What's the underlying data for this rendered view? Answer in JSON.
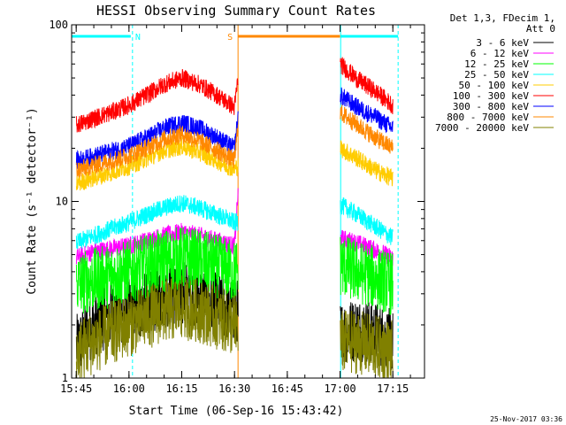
{
  "chart_data": {
    "type": "line",
    "title": "HESSI Observing Summary Count Rates",
    "xlabel": "Start Time (06-Sep-16 15:43:42)",
    "ylabel": "Count Rate (s⁻¹ detector⁻¹)",
    "x_start": "15:43:42",
    "xlim": [
      "15:43:42",
      "17:24:00"
    ],
    "x_ticks": [
      "15:45",
      "16:00",
      "16:15",
      "16:30",
      "16:45",
      "17:00",
      "17:15"
    ],
    "y_scale": "log",
    "ylim": [
      1,
      100
    ],
    "y_ticks": [
      1,
      10,
      100
    ],
    "legend_position": "outside top-right",
    "legend_header": [
      "Det 1,3, FDecim 1,",
      "Att 0"
    ],
    "timestamp": "25-Nov-2017 03:36",
    "time_grid": [
      "15:43",
      "15:45",
      "15:50",
      "15:55",
      "16:00",
      "16:05",
      "16:10",
      "16:15",
      "16:20",
      "16:25",
      "16:30",
      "16:31",
      "16:35",
      "16:40",
      "16:45",
      "16:50",
      "16:55",
      "17:00",
      "17:05",
      "17:10",
      "17:15",
      "17:17"
    ],
    "series": [
      {
        "name": "3 - 6 keV",
        "color": "#000000",
        "values": [
          null,
          1.5,
          2.0,
          2.3,
          2.4,
          2.6,
          2.9,
          3.1,
          2.9,
          2.6,
          2.4,
          2.4,
          null,
          null,
          null,
          null,
          null,
          1.8,
          1.9,
          1.8,
          1.6,
          null
        ]
      },
      {
        "name": "6 - 12 keV",
        "color": "#ff00ff",
        "values": [
          null,
          4.8,
          5.2,
          5.4,
          5.6,
          6.0,
          6.4,
          6.7,
          6.4,
          6.0,
          5.6,
          11.0,
          null,
          null,
          null,
          null,
          null,
          6.2,
          5.8,
          5.3,
          4.8,
          null
        ]
      },
      {
        "name": "12 - 25 keV",
        "color": "#00ff00",
        "values": [
          null,
          3.4,
          3.6,
          3.8,
          4.0,
          4.3,
          4.6,
          4.8,
          4.6,
          4.3,
          4.0,
          4.2,
          null,
          null,
          null,
          null,
          null,
          4.4,
          4.0,
          3.7,
          3.4,
          null
        ]
      },
      {
        "name": "25 - 50 keV",
        "color": "#00ffff",
        "values": [
          null,
          5.8,
          6.4,
          7.0,
          7.6,
          8.4,
          9.2,
          9.8,
          9.2,
          8.4,
          7.6,
          7.6,
          null,
          null,
          null,
          null,
          null,
          9.6,
          8.4,
          7.2,
          6.2,
          null
        ]
      },
      {
        "name": "50 - 100 keV",
        "color": "#ffcc00",
        "values": [
          null,
          12.6,
          13.6,
          14.6,
          15.8,
          17.5,
          19.5,
          20.5,
          19.0,
          17.0,
          15.2,
          16.0,
          null,
          null,
          null,
          null,
          null,
          20.0,
          17.5,
          15.0,
          13.5,
          null
        ]
      },
      {
        "name": "100 - 300 keV",
        "color": "#ff0000",
        "values": [
          null,
          27.0,
          29.5,
          32.0,
          35.0,
          40.0,
          46.0,
          50.0,
          46.0,
          40.0,
          34.0,
          50.0,
          null,
          null,
          null,
          null,
          null,
          60.0,
          49.0,
          42.0,
          35.0,
          null
        ]
      },
      {
        "name": "300 - 800 keV",
        "color": "#0000ff",
        "values": [
          null,
          17.0,
          18.0,
          19.2,
          20.5,
          23.0,
          26.0,
          28.0,
          26.0,
          23.0,
          20.0,
          30.0,
          null,
          null,
          null,
          null,
          null,
          40.0,
          34.0,
          30.0,
          26.0,
          null
        ]
      },
      {
        "name": "800 - 7000 keV",
        "color": "#ff8800",
        "values": [
          null,
          15.0,
          16.0,
          17.0,
          18.2,
          20.0,
          22.5,
          24.0,
          22.0,
          19.5,
          17.0,
          27.0,
          null,
          null,
          null,
          null,
          null,
          32.0,
          27.0,
          23.0,
          20.0,
          null
        ]
      },
      {
        "name": "7000 - 20000 keV",
        "color": "#808000",
        "values": [
          null,
          1.4,
          1.6,
          1.8,
          2.0,
          2.2,
          2.4,
          2.5,
          2.4,
          2.2,
          2.0,
          2.0,
          null,
          null,
          null,
          null,
          null,
          1.6,
          1.6,
          1.5,
          1.4,
          null
        ]
      }
    ],
    "flags": [
      {
        "label": "N",
        "color": "#00ffff",
        "bars": [
          [
            "15:43:42",
            "16:00:30"
          ],
          [
            "17:00:10",
            "17:16:30"
          ]
        ],
        "boundaries": [
          "15:43:42",
          "16:01:00",
          "17:00:10",
          "17:16:30"
        ]
      },
      {
        "label": "S",
        "color": "#ff8800",
        "bars": [
          [
            "16:31:00",
            "17:00:00"
          ]
        ],
        "boundaries": [
          "16:31:00"
        ]
      }
    ]
  }
}
